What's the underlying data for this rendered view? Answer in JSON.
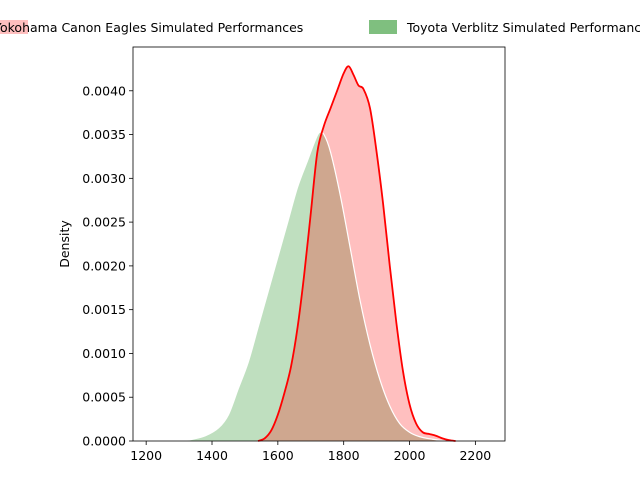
{
  "chart_data": {
    "type": "area",
    "title": "",
    "xlabel": "",
    "ylabel": "Density",
    "xlim": [
      1160,
      2290
    ],
    "ylim": [
      0,
      0.0045
    ],
    "xticks": [
      1200,
      1400,
      1600,
      1800,
      2000,
      2200
    ],
    "yticks": [
      0.0,
      0.0005,
      0.001,
      0.0015,
      0.002,
      0.0025,
      0.003,
      0.0035,
      0.004
    ],
    "ytick_labels": [
      "0.0000",
      "0.0005",
      "0.0010",
      "0.0015",
      "0.0020",
      "0.0025",
      "0.0030",
      "0.0035",
      "0.0040"
    ],
    "xtick_labels": [
      "1200",
      "1400",
      "1600",
      "1800",
      "2000",
      "2200"
    ],
    "grid": false,
    "legend_placement": "top",
    "series": [
      {
        "name": "Yokohama Canon Eagles Simulated Performances",
        "fill": "#ff0000",
        "fill_opacity": 0.25,
        "stroke": "#ff0000",
        "points": [
          [
            1540,
            0.0
          ],
          [
            1560,
            3e-05
          ],
          [
            1580,
            0.00012
          ],
          [
            1600,
            0.0003
          ],
          [
            1620,
            0.00055
          ],
          [
            1640,
            0.00085
          ],
          [
            1660,
            0.0013
          ],
          [
            1680,
            0.0019
          ],
          [
            1700,
            0.0026
          ],
          [
            1720,
            0.0033
          ],
          [
            1740,
            0.0036
          ],
          [
            1760,
            0.0038
          ],
          [
            1780,
            0.004
          ],
          [
            1800,
            0.0042
          ],
          [
            1815,
            0.00428
          ],
          [
            1830,
            0.00418
          ],
          [
            1845,
            0.00406
          ],
          [
            1860,
            0.00402
          ],
          [
            1880,
            0.0038
          ],
          [
            1900,
            0.0033
          ],
          [
            1920,
            0.0027
          ],
          [
            1940,
            0.002
          ],
          [
            1960,
            0.00135
          ],
          [
            1980,
            0.0008
          ],
          [
            2000,
            0.00042
          ],
          [
            2020,
            0.0002
          ],
          [
            2040,
            0.0001
          ],
          [
            2060,
            8e-05
          ],
          [
            2080,
            6e-05
          ],
          [
            2100,
            3e-05
          ],
          [
            2120,
            1e-05
          ],
          [
            2140,
            0.0
          ]
        ]
      },
      {
        "name": "Toyota Verblitz Simulated Performances",
        "fill": "#008000",
        "fill_opacity": 0.25,
        "stroke": "#ffffff",
        "points": [
          [
            1310,
            0.0
          ],
          [
            1340,
            2e-05
          ],
          [
            1380,
            6e-05
          ],
          [
            1420,
            0.00015
          ],
          [
            1450,
            0.0003
          ],
          [
            1480,
            0.0006
          ],
          [
            1510,
            0.0009
          ],
          [
            1540,
            0.0013
          ],
          [
            1570,
            0.0017
          ],
          [
            1600,
            0.0021
          ],
          [
            1630,
            0.0025
          ],
          [
            1660,
            0.0029
          ],
          [
            1690,
            0.0032
          ],
          [
            1710,
            0.0034
          ],
          [
            1725,
            0.00352
          ],
          [
            1740,
            0.0035
          ],
          [
            1760,
            0.0033
          ],
          [
            1790,
            0.0028
          ],
          [
            1820,
            0.0022
          ],
          [
            1850,
            0.0016
          ],
          [
            1880,
            0.0011
          ],
          [
            1910,
            0.0007
          ],
          [
            1940,
            0.0004
          ],
          [
            1970,
            0.0002
          ],
          [
            2000,
            0.0001
          ],
          [
            2030,
            5e-05
          ],
          [
            2070,
            2e-05
          ],
          [
            2110,
            0.0
          ]
        ]
      }
    ]
  }
}
